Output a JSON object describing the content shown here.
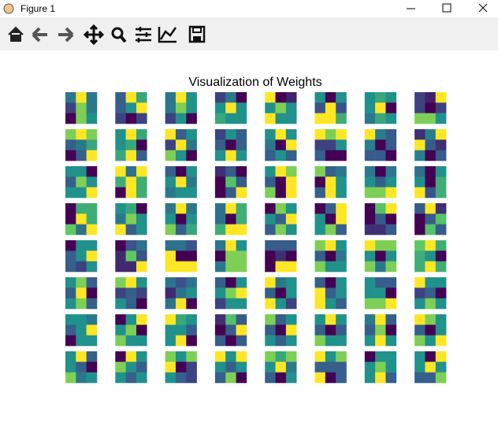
{
  "window": {
    "title": "Figure 1"
  },
  "chart_data": {
    "type": "image-grid",
    "title": "Visualization of Weights",
    "colormap": "viridis",
    "images": [
      [
        [
          0.4,
          1,
          0.4
        ],
        [
          0.2,
          0.8,
          0.4
        ],
        [
          0,
          0.8,
          0.5
        ]
      ],
      [
        [
          0.3,
          1,
          0.6
        ],
        [
          0.3,
          0.5,
          1
        ],
        [
          0.2,
          0,
          0.2
        ]
      ],
      [
        [
          0.4,
          1,
          0.5
        ],
        [
          0.4,
          0.8,
          0.5
        ],
        [
          0.2,
          0.5,
          0
        ]
      ],
      [
        [
          0.2,
          0.4,
          0
        ],
        [
          0.5,
          1,
          0.5
        ],
        [
          0.6,
          0.5,
          0.5
        ]
      ],
      [
        [
          1,
          0,
          0.1
        ],
        [
          0.5,
          0.8,
          0.5
        ],
        [
          1,
          0.5,
          0.5
        ]
      ],
      [
        [
          0.4,
          0,
          0.4
        ],
        [
          0.2,
          0.8,
          0.2
        ],
        [
          0.8,
          0.8,
          0.5
        ]
      ],
      [
        [
          0.5,
          0.6,
          0.5
        ],
        [
          0.5,
          1,
          0
        ],
        [
          0.4,
          0.6,
          0.5
        ]
      ],
      [
        [
          0.2,
          0.1,
          1
        ],
        [
          0.2,
          0,
          0.2
        ],
        [
          0.8,
          0.8,
          0.5
        ]
      ],
      [
        [
          0.8,
          1,
          0.8
        ],
        [
          0.3,
          0.4,
          0.6
        ],
        [
          0,
          0.3,
          1
        ]
      ],
      [
        [
          0.5,
          1,
          0.6
        ],
        [
          0.5,
          0.6,
          0
        ],
        [
          0.6,
          1,
          0.3
        ]
      ],
      [
        [
          1,
          0.3,
          0.5
        ],
        [
          0.2,
          1,
          0.4
        ],
        [
          0.8,
          0.5,
          0
        ]
      ],
      [
        [
          0.2,
          0.5,
          0.3
        ],
        [
          0.3,
          0,
          0.3
        ],
        [
          0.5,
          1,
          0.5
        ]
      ],
      [
        [
          0.5,
          1,
          0.5
        ],
        [
          0.4,
          0,
          1
        ],
        [
          0.3,
          0.5,
          0.3
        ]
      ],
      [
        [
          1,
          0.8,
          1
        ],
        [
          0.2,
          0.2,
          0.5
        ],
        [
          0.3,
          0,
          0
        ]
      ],
      [
        [
          1,
          0.6,
          0.5
        ],
        [
          0.6,
          0.3,
          0.5
        ],
        [
          0.5,
          0.5,
          0.3
        ]
      ],
      [
        [
          0.4,
          0.6,
          1
        ],
        [
          1,
          0.5,
          0.4
        ],
        [
          0.6,
          0.3,
          0.5
        ]
      ],
      [
        [
          0.5,
          0.5,
          0
        ],
        [
          0.3,
          0.8,
          0.5
        ],
        [
          0.5,
          0.5,
          1
        ]
      ],
      [
        [
          0.8,
          0.3,
          0.8
        ],
        [
          0.5,
          0.8,
          0.5
        ],
        [
          0,
          0.8,
          0.5
        ]
      ],
      [
        [
          0.3,
          0,
          0.5
        ],
        [
          0.5,
          1,
          0.4
        ],
        [
          0.4,
          0.5,
          0.5
        ]
      ],
      [
        [
          0.4,
          0.5,
          0.3
        ],
        [
          0.3,
          0.8,
          0.5
        ],
        [
          0.3,
          0.5,
          1
        ]
      ],
      [
        [
          0.5,
          1,
          0.8
        ],
        [
          0.3,
          0,
          1
        ],
        [
          0.8,
          0,
          1
        ]
      ],
      [
        [
          0.8,
          0.3,
          0.4
        ],
        [
          0,
          1,
          0.5
        ],
        [
          0.3,
          1,
          0.5
        ]
      ],
      [
        [
          0.4,
          0,
          0.4
        ],
        [
          0.5,
          0.3,
          0.5
        ],
        [
          0.8,
          0.8,
          1
        ]
      ],
      [
        [
          0.3,
          0,
          0.4
        ],
        [
          0.4,
          0,
          0.5
        ],
        [
          0.8,
          0.2,
          0.5
        ]
      ],
      [
        [
          0,
          0.5,
          0.5
        ],
        [
          0,
          0.8,
          0.5
        ],
        [
          0.6,
          0.3,
          0.8
        ]
      ],
      [
        [
          0.5,
          0.6,
          0
        ],
        [
          0.4,
          0.8,
          0.5
        ],
        [
          1,
          0.3,
          0.5
        ]
      ],
      [
        [
          0.4,
          1,
          0.4
        ],
        [
          0.5,
          0,
          0.5
        ],
        [
          0.8,
          0.3,
          0.6
        ]
      ],
      [
        [
          0.3,
          0.8,
          0.5
        ],
        [
          0.3,
          0,
          0.5
        ],
        [
          0.5,
          0.8,
          0.8
        ]
      ],
      [
        [
          0,
          0.8,
          0.5
        ],
        [
          0.5,
          0.3,
          1
        ],
        [
          0.3,
          0.8,
          0.5
        ]
      ],
      [
        [
          0,
          0.3,
          1
        ],
        [
          0.5,
          0,
          1
        ],
        [
          0.5,
          0.8,
          0.3
        ]
      ],
      [
        [
          0.3,
          0.8,
          1
        ],
        [
          0.3,
          0.5,
          0.3
        ],
        [
          0.4,
          0.4,
          0.5
        ]
      ],
      [
        [
          0.5,
          1,
          0.4
        ],
        [
          0.3,
          0.5,
          0.8
        ],
        [
          0.3,
          0.8,
          0.5
        ]
      ],
      [
        [
          0,
          0.5,
          0.5
        ],
        [
          0.3,
          0.5,
          1
        ],
        [
          0.3,
          0.2,
          0.5
        ]
      ],
      [
        [
          0.2,
          0.4,
          0.5
        ],
        [
          0.3,
          0.8,
          0.4
        ],
        [
          0.3,
          0.3,
          1
        ]
      ],
      [
        [
          0.5,
          0.5,
          0.4
        ],
        [
          1,
          0.2,
          0.2
        ],
        [
          1,
          1,
          1
        ]
      ],
      [
        [
          0.4,
          1,
          0.5
        ],
        [
          0,
          0.8,
          0.8
        ],
        [
          0.4,
          0.8,
          0.8
        ]
      ],
      [
        [
          0.5,
          0.5,
          0.5
        ],
        [
          0.3,
          0.4,
          0.3
        ],
        [
          0.3,
          1,
          1
        ]
      ],
      [
        [
          0.8,
          1,
          0.5
        ],
        [
          0.3,
          0,
          0.4
        ],
        [
          0.8,
          0.5,
          0.5
        ]
      ],
      [
        [
          1,
          0.8,
          0.8
        ],
        [
          0.5,
          0,
          0.5
        ],
        [
          0.8,
          0.4,
          0.8
        ]
      ],
      [
        [
          0.6,
          0.8,
          0.5
        ],
        [
          0.5,
          0.4,
          0
        ],
        [
          0.5,
          0.8,
          0.5
        ]
      ],
      [
        [
          0.5,
          0.8,
          0.3
        ],
        [
          0.3,
          1,
          0
        ],
        [
          0.5,
          0.8,
          0.3
        ]
      ],
      [
        [
          0.8,
          1,
          0.5
        ],
        [
          0.2,
          0.3,
          0.2
        ],
        [
          0.5,
          0.3,
          0
        ]
      ],
      [
        [
          0.5,
          0.4,
          0.5
        ],
        [
          0.3,
          0.5,
          0.6
        ],
        [
          0.5,
          1,
          0.2
        ]
      ],
      [
        [
          0.3,
          0,
          0.5
        ],
        [
          0.5,
          0.8,
          1
        ],
        [
          0.2,
          0.5,
          0.5
        ]
      ],
      [
        [
          1,
          0.4,
          0.5
        ],
        [
          0.3,
          0,
          0.5
        ],
        [
          1,
          0.5,
          0.2
        ]
      ],
      [
        [
          0.3,
          0,
          0.5
        ],
        [
          1,
          0.3,
          0.5
        ],
        [
          1,
          0.5,
          0.3
        ]
      ],
      [
        [
          0.5,
          0.3,
          0.3
        ],
        [
          0.5,
          0.5,
          0
        ],
        [
          0.8,
          0.8,
          1
        ]
      ],
      [
        [
          1,
          0.5,
          0.5
        ],
        [
          0.2,
          0.3,
          0
        ],
        [
          0.5,
          0.8,
          0.5
        ]
      ],
      [
        [
          0.5,
          0.5,
          0.4
        ],
        [
          0.3,
          0.5,
          1
        ],
        [
          0,
          0.5,
          0.5
        ]
      ],
      [
        [
          0,
          0.5,
          1
        ],
        [
          0.5,
          0.8,
          0
        ],
        [
          0.8,
          0.5,
          0.5
        ]
      ],
      [
        [
          1,
          0.6,
          0.5
        ],
        [
          0.5,
          0.5,
          0.3
        ],
        [
          0.5,
          1,
          0
        ]
      ],
      [
        [
          0.4,
          0.8,
          0.5
        ],
        [
          0.3,
          0.5,
          1
        ],
        [
          0.5,
          0.3,
          0.5
        ]
      ],
      [
        [
          0.8,
          0.3,
          0.5
        ],
        [
          0.3,
          0,
          1
        ],
        [
          0.5,
          0.3,
          0.5
        ]
      ],
      [
        [
          0.5,
          1,
          0.5
        ],
        [
          0.3,
          0,
          0.3
        ],
        [
          0.8,
          0.5,
          0.5
        ]
      ],
      [
        [
          0.4,
          1,
          0.3
        ],
        [
          0.3,
          0.8,
          0
        ],
        [
          0.5,
          1,
          0.5
        ]
      ],
      [
        [
          1,
          0.8,
          0.5
        ],
        [
          0.3,
          0,
          0.5
        ],
        [
          0.8,
          0.5,
          1
        ]
      ],
      [
        [
          0.5,
          1,
          0.3
        ],
        [
          0.5,
          0.3,
          0
        ],
        [
          0.8,
          0.4,
          0.5
        ]
      ],
      [
        [
          0,
          1,
          0.5
        ],
        [
          0.8,
          0.5,
          0.3
        ],
        [
          0.5,
          0.3,
          0.5
        ]
      ],
      [
        [
          0.8,
          0.5,
          0.8
        ],
        [
          1,
          0,
          0.2
        ],
        [
          0.5,
          0.3,
          0.2
        ]
      ],
      [
        [
          1,
          0.5,
          1
        ],
        [
          0.5,
          0.3,
          0.5
        ],
        [
          0.3,
          0.8,
          0
        ]
      ],
      [
        [
          0.8,
          0.6,
          0.8
        ],
        [
          0.5,
          1,
          0.4
        ],
        [
          0.3,
          0,
          0.5
        ]
      ],
      [
        [
          1,
          0.5,
          0.8
        ],
        [
          0.3,
          0.3,
          0.3
        ],
        [
          1,
          0,
          0.3
        ]
      ],
      [
        [
          0,
          0.5,
          0.5
        ],
        [
          0.5,
          0.8,
          0.5
        ],
        [
          0.5,
          1,
          0.3
        ]
      ],
      [
        [
          0.5,
          0,
          1
        ],
        [
          0.5,
          1,
          0.5
        ],
        [
          0.3,
          0.3,
          0.8
        ]
      ]
    ]
  }
}
